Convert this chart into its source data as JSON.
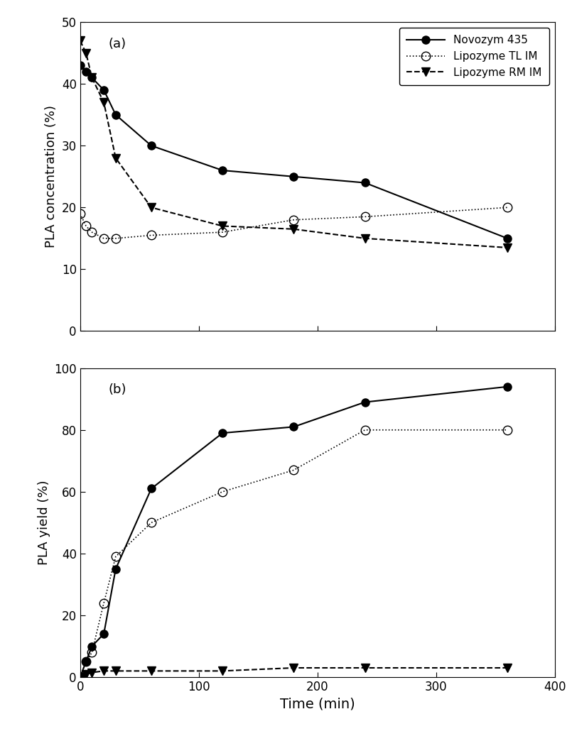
{
  "panel_a": {
    "novozym435": {
      "x": [
        0,
        5,
        10,
        20,
        30,
        60,
        120,
        180,
        240,
        360
      ],
      "y": [
        43,
        42,
        41,
        39,
        35,
        30,
        26,
        25,
        24,
        15
      ]
    },
    "lipozyme_tl": {
      "x": [
        0,
        5,
        10,
        20,
        30,
        60,
        120,
        180,
        240,
        360
      ],
      "y": [
        19,
        17,
        16,
        15,
        15,
        15.5,
        16,
        18,
        18.5,
        20
      ]
    },
    "lipozyme_rm": {
      "x": [
        0,
        5,
        10,
        20,
        30,
        60,
        120,
        180,
        240,
        360
      ],
      "y": [
        47,
        45,
        41,
        37,
        28,
        20,
        17,
        16.5,
        15,
        13.5
      ]
    },
    "ylabel": "PLA concentration (%)",
    "ylim": [
      0,
      50
    ],
    "yticks": [
      0,
      10,
      20,
      30,
      40,
      50
    ],
    "panel_label": "(a)"
  },
  "panel_b": {
    "novozym435": {
      "x": [
        0,
        5,
        10,
        20,
        30,
        60,
        120,
        180,
        240,
        360
      ],
      "y": [
        0,
        5,
        10,
        14,
        35,
        61,
        79,
        81,
        89,
        94
      ]
    },
    "lipozyme_tl": {
      "x": [
        0,
        5,
        10,
        20,
        30,
        60,
        120,
        180,
        240,
        360
      ],
      "y": [
        0,
        5,
        8,
        24,
        39,
        50,
        60,
        67,
        80,
        80
      ]
    },
    "lipozyme_rm": {
      "x": [
        0,
        5,
        10,
        20,
        30,
        60,
        120,
        180,
        240,
        360
      ],
      "y": [
        0,
        1,
        1.5,
        2,
        2,
        2,
        2,
        3,
        3,
        3
      ]
    },
    "ylabel": "PLA yield (%)",
    "ylim": [
      0,
      100
    ],
    "yticks": [
      0,
      20,
      40,
      60,
      80,
      100
    ],
    "panel_label": "(b)"
  },
  "xlabel": "Time (min)",
  "xlim": [
    0,
    400
  ],
  "xticks": [
    0,
    100,
    200,
    300,
    400
  ],
  "legend": {
    "novozym435": "Novozym 435",
    "lipozyme_tl": "Lipozyme TL IM",
    "lipozyme_rm": "Lipozyme RM IM"
  },
  "figsize": [
    8.05,
    10.37
  ],
  "dpi": 100
}
